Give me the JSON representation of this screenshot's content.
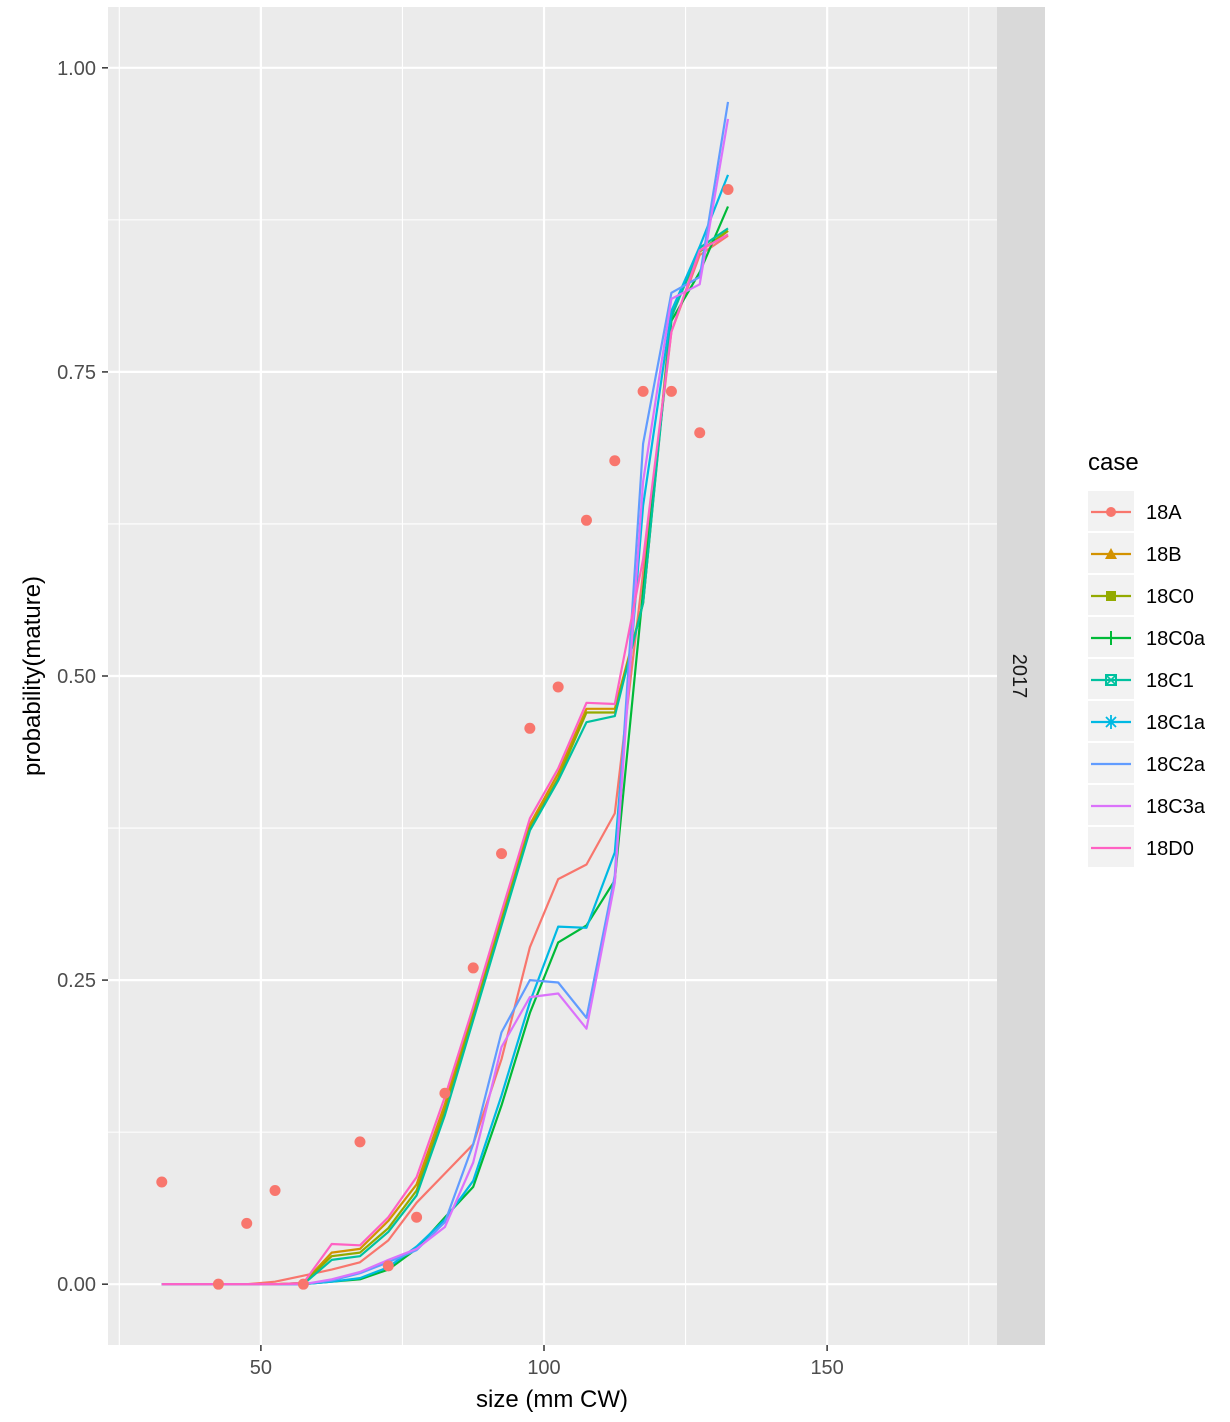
{
  "chart_data": {
    "type": "line",
    "title": "",
    "facet_label": "2017",
    "xlabel": "size (mm CW)",
    "ylabel": "probability(mature)",
    "xlim": [
      23,
      180
    ],
    "ylim": [
      -0.05,
      1.05
    ],
    "x_ticks": [
      50,
      100,
      150
    ],
    "x_tick_labels": [
      "50",
      "100",
      "150"
    ],
    "y_ticks": [
      0,
      0.25,
      0.5,
      0.75,
      1.0
    ],
    "y_tick_labels": [
      "0.00",
      "0.25",
      "0.50",
      "0.75",
      "1.00"
    ],
    "grid": true,
    "legend": {
      "title": "case",
      "position": "right"
    },
    "observed": {
      "series": "18A",
      "x": [
        32.5,
        42.5,
        47.5,
        52.5,
        57.5,
        67.5,
        72.5,
        77.5,
        82.5,
        87.5,
        92.5,
        97.5,
        102.5,
        107.5,
        112.5,
        117.5,
        122.5,
        127.5,
        132.5
      ],
      "y": [
        0.084,
        0.0,
        0.05,
        0.077,
        0.0,
        0.117,
        0.015,
        0.055,
        0.157,
        0.26,
        0.354,
        0.457,
        0.491,
        0.628,
        0.677,
        0.734,
        0.734,
        0.7,
        0.9
      ]
    },
    "x": [
      32.5,
      37.5,
      42.5,
      47.5,
      52.5,
      57.5,
      62.5,
      67.5,
      72.5,
      77.5,
      82.5,
      87.5,
      92.5,
      97.5,
      102.5,
      107.5,
      112.5,
      117.5,
      122.5,
      127.5,
      132.5
    ],
    "series": [
      {
        "name": "18A",
        "color": "#F8766D",
        "marker": "circle",
        "values": [
          0,
          0,
          0,
          0,
          0.002,
          0.007,
          0.012,
          0.018,
          0.036,
          0.067,
          0.091,
          0.115,
          0.185,
          0.277,
          0.333,
          0.345,
          0.387,
          0.585,
          0.783,
          0.846,
          0.862
        ]
      },
      {
        "name": "18B",
        "color": "#D39200",
        "marker": "triangle",
        "values": [
          0,
          0,
          0,
          0,
          0,
          0.001,
          0.026,
          0.029,
          0.052,
          0.082,
          0.148,
          0.225,
          0.302,
          0.378,
          0.42,
          0.473,
          0.473,
          0.56,
          0.8,
          0.849,
          0.866
        ]
      },
      {
        "name": "18C0",
        "color": "#93AA00",
        "marker": "square",
        "values": [
          0,
          0,
          0,
          0,
          0,
          0.001,
          0.023,
          0.026,
          0.046,
          0.077,
          0.143,
          0.221,
          0.298,
          0.375,
          0.416,
          0.47,
          0.47,
          0.56,
          0.797,
          0.849,
          0.866
        ]
      },
      {
        "name": "18C0a",
        "color": "#00BA38",
        "marker": "plus",
        "values": [
          0,
          0,
          0,
          0,
          0,
          0,
          0.002,
          0.004,
          0.012,
          0.029,
          0.055,
          0.08,
          0.147,
          0.223,
          0.281,
          0.295,
          0.332,
          0.57,
          0.792,
          0.832,
          0.886
        ]
      },
      {
        "name": "18C1",
        "color": "#00C19F",
        "marker": "boxx",
        "values": [
          0,
          0,
          0,
          0,
          0,
          0,
          0.02,
          0.023,
          0.043,
          0.073,
          0.139,
          0.217,
          0.295,
          0.373,
          0.414,
          0.462,
          0.467,
          0.56,
          0.795,
          0.852,
          0.868
        ]
      },
      {
        "name": "18C1a",
        "color": "#00B9E3",
        "marker": "star",
        "values": [
          0,
          0,
          0,
          0,
          0,
          0,
          0.002,
          0.005,
          0.014,
          0.031,
          0.053,
          0.085,
          0.155,
          0.232,
          0.294,
          0.293,
          0.355,
          0.64,
          0.8,
          0.853,
          0.912
        ]
      },
      {
        "name": "18C2a",
        "color": "#619CFF",
        "marker": "none",
        "values": [
          0,
          0,
          0,
          0,
          0,
          0,
          0.003,
          0.009,
          0.018,
          0.028,
          0.051,
          0.115,
          0.207,
          0.25,
          0.248,
          0.219,
          0.336,
          0.691,
          0.815,
          0.828,
          0.972
        ]
      },
      {
        "name": "18C3a",
        "color": "#DB72FB",
        "marker": "none",
        "values": [
          0,
          0,
          0,
          0,
          0,
          0,
          0.004,
          0.01,
          0.02,
          0.029,
          0.047,
          0.1,
          0.195,
          0.236,
          0.239,
          0.21,
          0.33,
          0.66,
          0.81,
          0.822,
          0.958
        ]
      },
      {
        "name": "18D0",
        "color": "#FF61C3",
        "marker": "none",
        "values": [
          0,
          0,
          0,
          0,
          0,
          0.001,
          0.033,
          0.032,
          0.055,
          0.088,
          0.154,
          0.228,
          0.306,
          0.383,
          0.424,
          0.478,
          0.477,
          0.596,
          0.783,
          0.85,
          0.863
        ]
      }
    ]
  }
}
